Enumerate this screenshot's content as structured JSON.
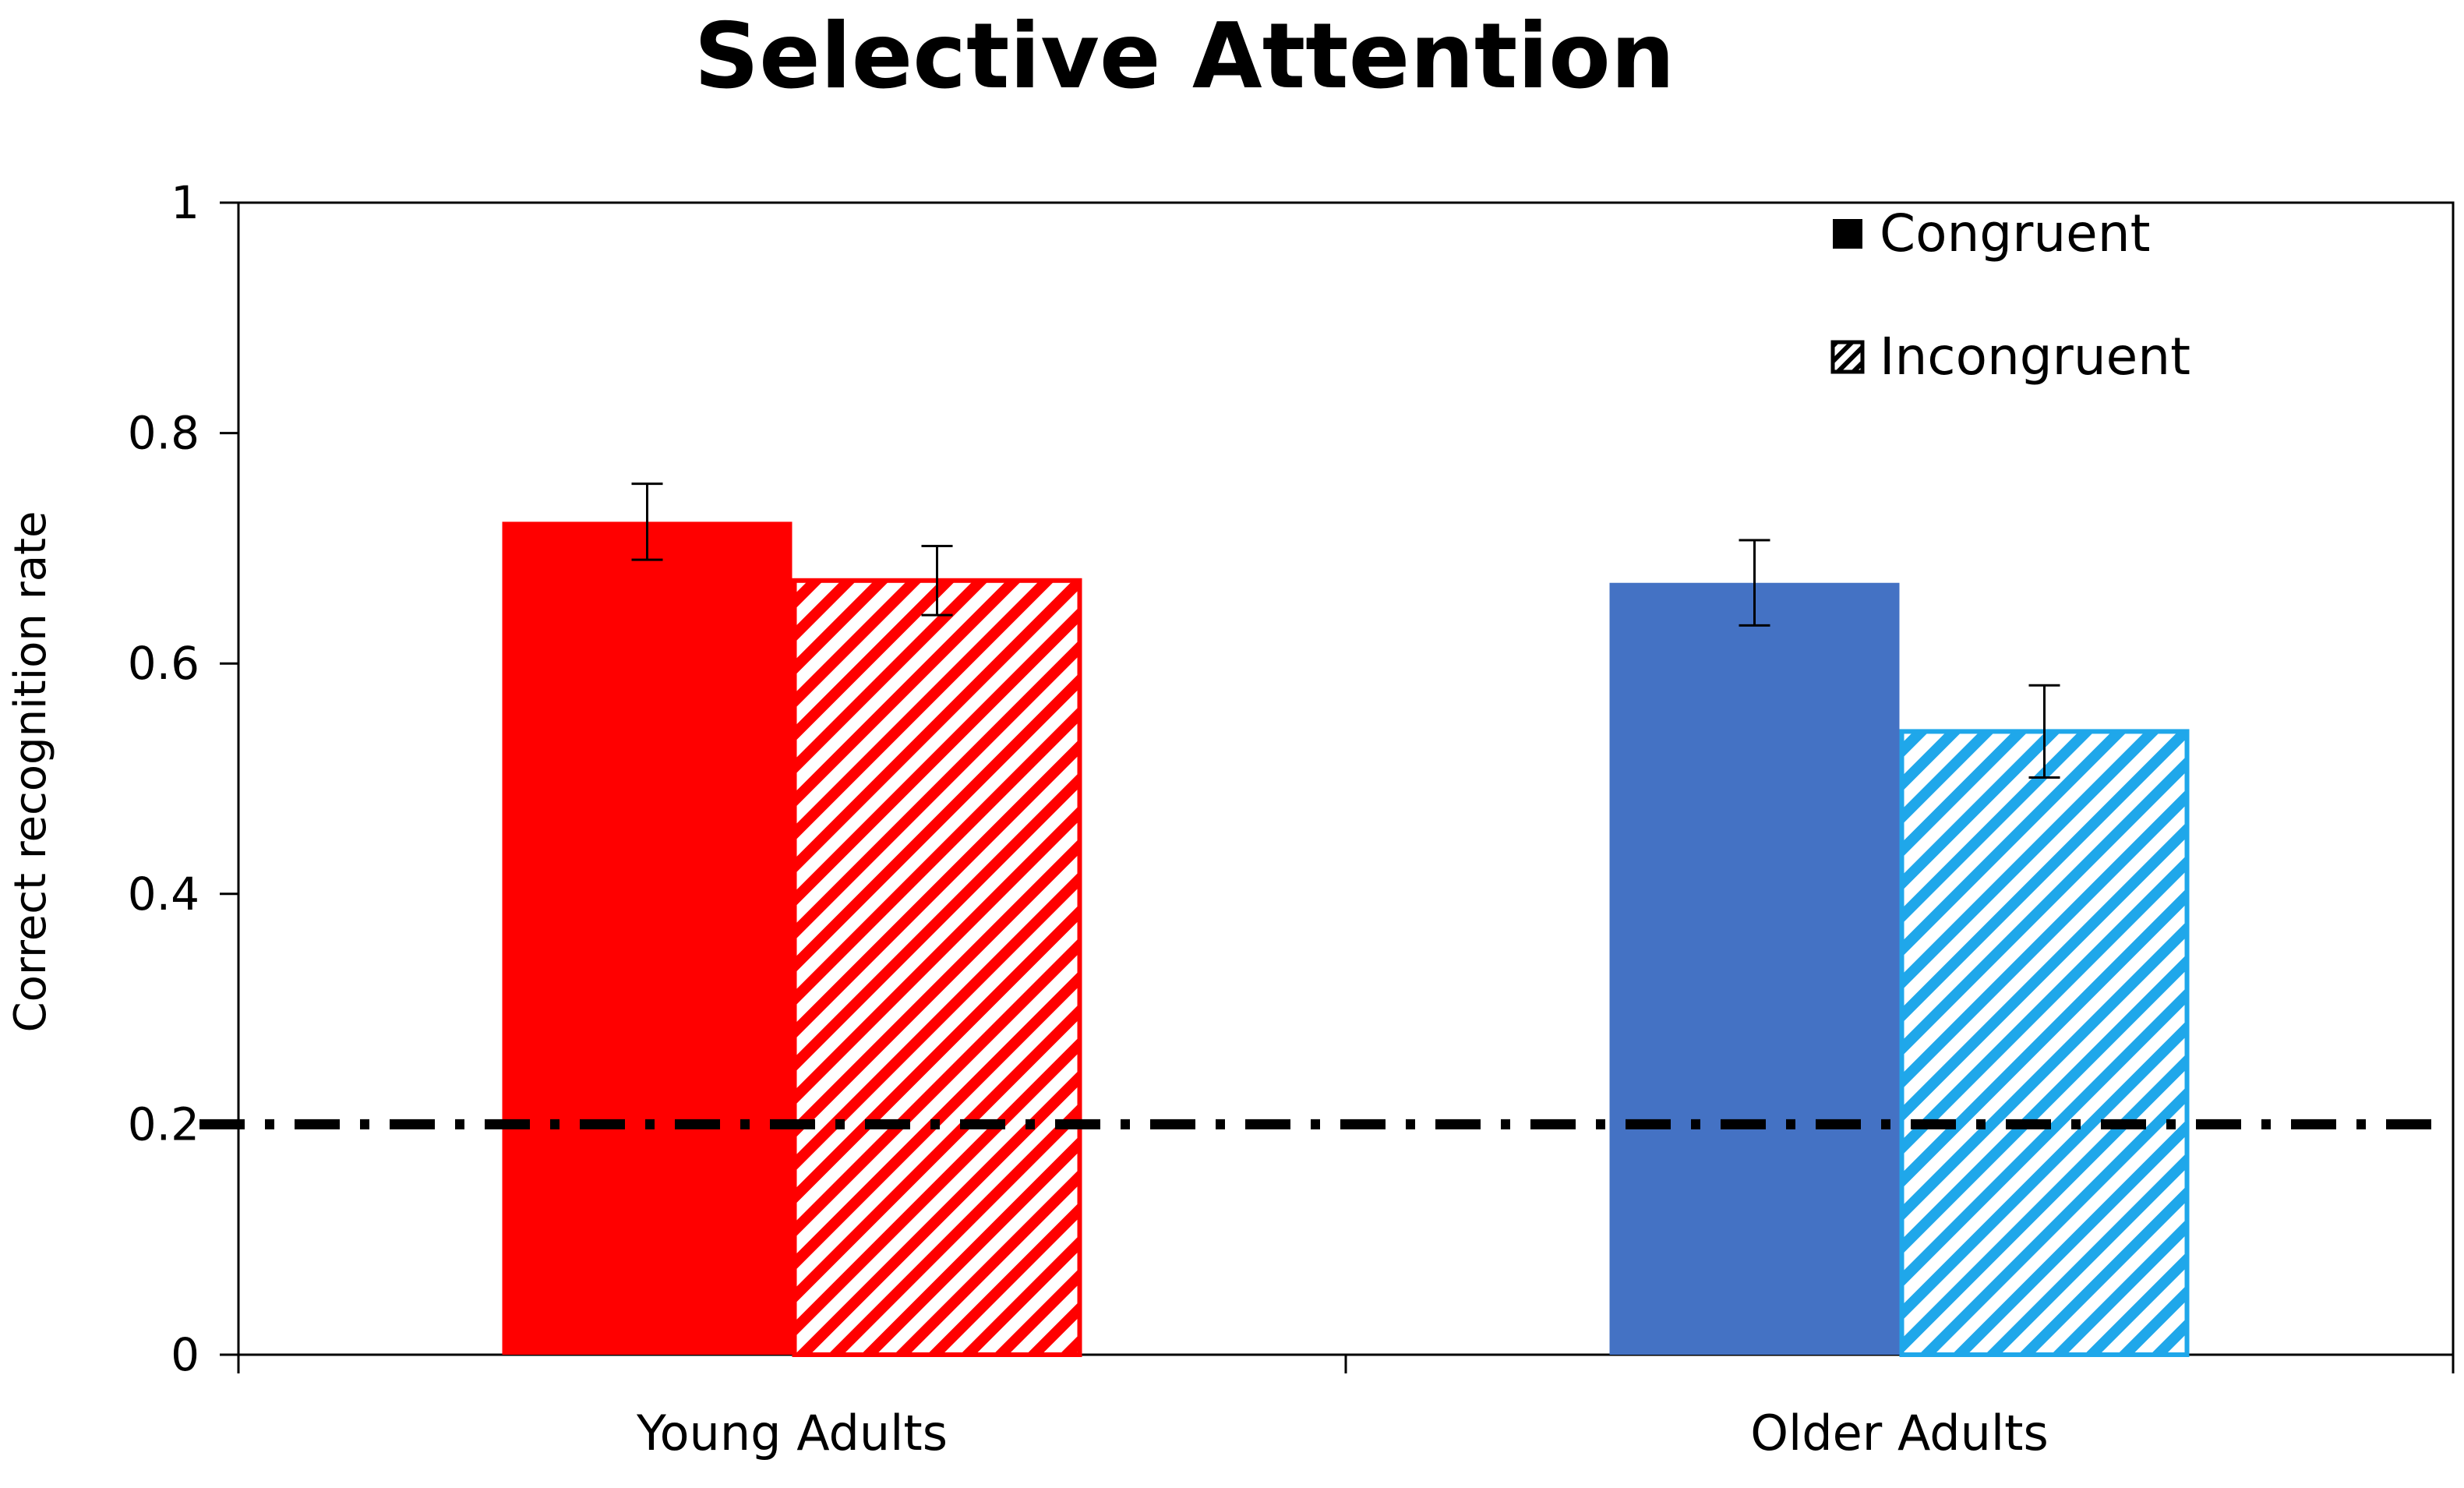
{
  "chart_data": {
    "type": "bar",
    "title": "Selective Attention",
    "xlabel": "",
    "ylabel": "Correct recognition rate",
    "ylim": [
      0,
      1
    ],
    "yticks": [
      {
        "value": 0,
        "label": "0"
      },
      {
        "value": 0.2,
        "label": "0.2"
      },
      {
        "value": 0.4,
        "label": "0.4"
      },
      {
        "value": 0.6,
        "label": "0.6"
      },
      {
        "value": 0.8,
        "label": "0.8"
      },
      {
        "value": 1,
        "label": "1"
      }
    ],
    "categories": [
      "Young Adults",
      "Older Adults"
    ],
    "series": [
      {
        "name": "Congruent",
        "pattern": "solid",
        "colors": [
          "#ff0000",
          "#4472c4"
        ],
        "values": [
          0.723,
          0.67
        ],
        "error": [
          0.033,
          0.037
        ]
      },
      {
        "name": "Incongruent",
        "pattern": "hatched",
        "colors": [
          "#ff0000",
          "#1fa7ea"
        ],
        "values": [
          0.672,
          0.541
        ],
        "error": [
          0.03,
          0.04
        ]
      }
    ],
    "reference_line": {
      "value": 0.2,
      "style": "dash-dot",
      "color": "#000000"
    },
    "legend": {
      "position": "top-right",
      "entries": [
        {
          "label": "Congruent",
          "swatch": "solid"
        },
        {
          "label": "Incongruent",
          "swatch": "hatched"
        }
      ]
    },
    "grid": false
  }
}
